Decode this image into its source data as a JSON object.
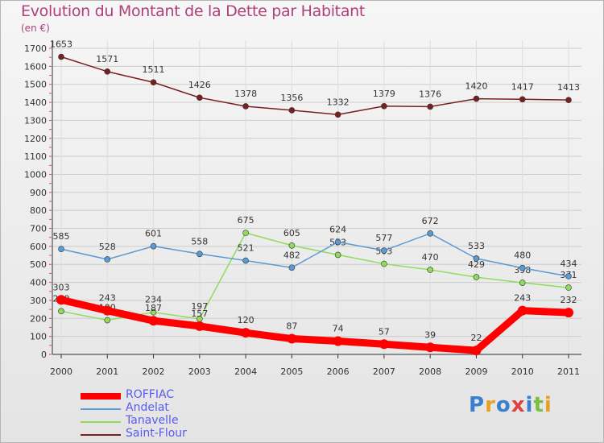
{
  "title": "Evolution du Montant de la Dette par Habitant",
  "subtitle": "(en €)",
  "logo": "Proxiti",
  "colors": {
    "title": "#b0407a",
    "axis": "#333333",
    "grid": "#cccccc",
    "legend_text": "#5a5af0"
  },
  "chart_data": {
    "type": "line",
    "x": [
      "2000",
      "2001",
      "2002",
      "2003",
      "2004",
      "2005",
      "2006",
      "2007",
      "2008",
      "2009",
      "2010",
      "2011"
    ],
    "ylim": [
      0,
      1700
    ],
    "yticks": [
      0,
      100,
      200,
      300,
      400,
      500,
      600,
      700,
      800,
      900,
      1000,
      1100,
      1200,
      1300,
      1400,
      1500,
      1600,
      1700
    ],
    "grid": true,
    "legend_position": "bottom-left",
    "series": [
      {
        "name": "ROFFIAC",
        "color": "#ff0000",
        "values": [
          303,
          243,
          187,
          157,
          120,
          87,
          74,
          57,
          39,
          22,
          243,
          232
        ]
      },
      {
        "name": "Andelat",
        "color": "#5b9bd5",
        "values": [
          585,
          528,
          601,
          558,
          521,
          482,
          624,
          577,
          672,
          533,
          480,
          434
        ]
      },
      {
        "name": "Tanavelle",
        "color": "#8fdc5a",
        "values": [
          240,
          190,
          234,
          197,
          675,
          605,
          553,
          503,
          470,
          429,
          398,
          371
        ]
      },
      {
        "name": "Saint-Flour",
        "color": "#7a1f1f",
        "values": [
          1653,
          1571,
          1511,
          1426,
          1378,
          1356,
          1332,
          1379,
          1376,
          1420,
          1417,
          1413
        ]
      }
    ]
  }
}
